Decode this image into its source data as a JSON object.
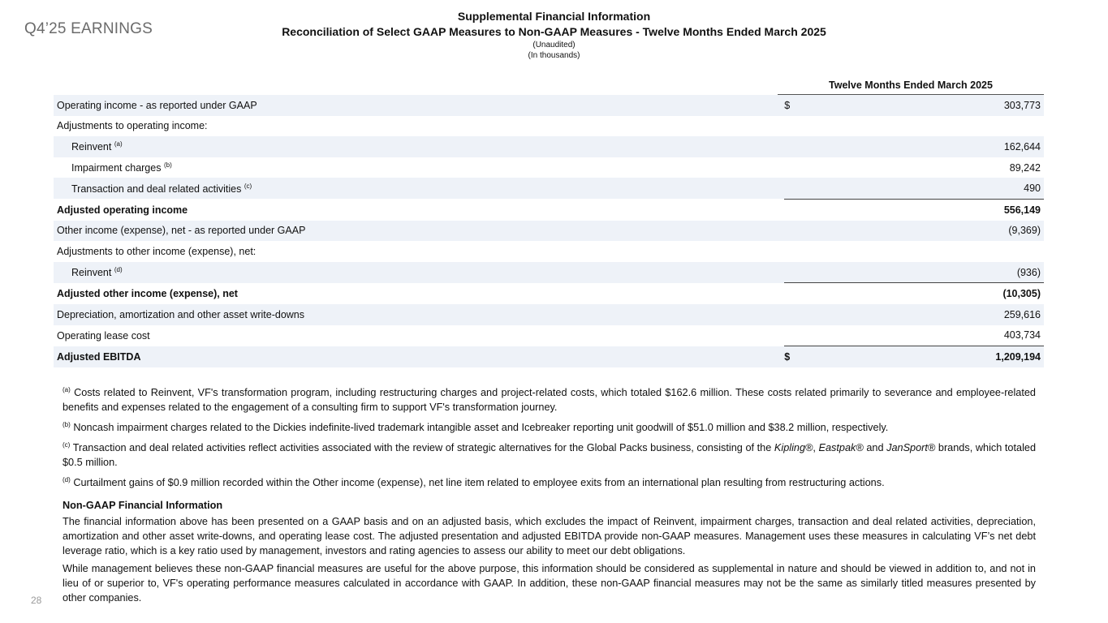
{
  "brand": "Q4’25 EARNINGS",
  "header": {
    "title": "Supplemental Financial Information",
    "subtitle": "Reconciliation of Select GAAP Measures to Non-GAAP Measures - Twelve Months Ended March 2025",
    "note1": "(Unaudited)",
    "note2": "(In thousands)"
  },
  "table": {
    "column_header": "Twelve Months Ended March 2025",
    "rows": [
      {
        "label": "Operating income - as reported under GAAP",
        "sup": "",
        "dollar": "$",
        "value": "303,773"
      },
      {
        "label": "Adjustments to operating income:",
        "sup": "",
        "dollar": "",
        "value": ""
      },
      {
        "label": "Reinvent",
        "sup": "(a)",
        "dollar": "",
        "value": "162,644"
      },
      {
        "label": "Impairment charges",
        "sup": "(b)",
        "dollar": "",
        "value": "89,242"
      },
      {
        "label": "Transaction and deal related activities",
        "sup": "(c)",
        "dollar": "",
        "value": "490"
      },
      {
        "label": "Adjusted operating income",
        "sup": "",
        "dollar": "",
        "value": "556,149"
      },
      {
        "label": "Other income (expense), net - as reported under GAAP",
        "sup": "",
        "dollar": "",
        "value": "(9,369)"
      },
      {
        "label": "Adjustments to other income (expense), net:",
        "sup": "",
        "dollar": "",
        "value": ""
      },
      {
        "label": "Reinvent",
        "sup": "(d)",
        "dollar": "",
        "value": "(936)"
      },
      {
        "label": "Adjusted other income (expense), net",
        "sup": "",
        "dollar": "",
        "value": "(10,305)"
      },
      {
        "label": "Depreciation, amortization and other asset write-downs",
        "sup": "",
        "dollar": "",
        "value": "259,616"
      },
      {
        "label": "Operating lease cost",
        "sup": "",
        "dollar": "",
        "value": "403,734"
      },
      {
        "label": "Adjusted EBITDA",
        "sup": "",
        "dollar": "$",
        "value": "1,209,194"
      }
    ]
  },
  "footnotes": {
    "a": {
      "mark": "(a)",
      "text": "Costs related to Reinvent, VF's transformation program, including restructuring charges and project-related costs, which totaled $162.6 million.  These costs related primarily to severance and employee-related benefits and expenses related to the engagement of a consulting firm to support VF's transformation journey."
    },
    "b": {
      "mark": "(b)",
      "text": "Noncash impairment charges related to the Dickies indefinite-lived trademark intangible asset and Icebreaker reporting unit goodwill of $51.0 million  and  $38.2 million, respectively."
    },
    "c": {
      "mark": "(c)",
      "pre": "Transaction and deal related activities reflect activities associated with the review of strategic alternatives for the Global Packs business, consisting of the ",
      "brand1": "Kipling®",
      "sep1": ", ",
      "brand2": "Eastpak®",
      "sep2": " and ",
      "brand3": "JanSport®",
      "post": " brands, which totaled $0.5 million."
    },
    "d": {
      "mark": "(d)",
      "text": "Curtailment gains of $0.9 million recorded within the Other income (expense), net line item related to employee exits from an international plan resulting from restructuring actions."
    }
  },
  "nongaap": {
    "heading": "Non-GAAP Financial Information",
    "p1": "The financial information above has been presented on a GAAP basis and on an adjusted basis, which excludes the impact of Reinvent, impairment charges, transaction and deal related activities, depreciation, amortization and other asset write-downs, and operating lease cost. The adjusted presentation and adjusted EBITDA provide non-GAAP measures. Management uses these measures in calculating VF’s net debt leverage ratio, which is a key ratio used by management, investors and rating agencies to assess our ability to meet our debt obligations.",
    "p2": "While management believes these non-GAAP financial measures are useful for the above purpose, this information should be considered as supplemental in nature and should be viewed in addition to, and not in lieu of or superior to, VF's operating performance measures calculated in accordance with GAAP. In addition, these non-GAAP financial measures may not be the same as similarly titled measures presented by other companies."
  },
  "page_number": "28"
}
